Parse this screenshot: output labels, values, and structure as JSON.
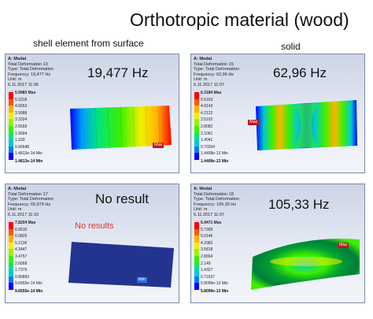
{
  "title": "Orthotropic material (wood)",
  "labels": {
    "left": "shell element from surface",
    "right": "solid"
  },
  "panels": [
    {
      "id": "p1",
      "header": "A: Modal",
      "lines": [
        "Total Deformation 13",
        "Type: Total Deformation",
        "Frequency: 19,477 Hz",
        "Unit: m",
        "6.11.2017 11:06"
      ],
      "freq_label": "19,477 Hz",
      "legend": [
        "5.9983 Max",
        "5.3318",
        "4.6653",
        "3.9988",
        "3.3324",
        "2.6659",
        "1.9994",
        "1.333",
        "0.66648",
        "1.4813e-14 Min"
      ],
      "marker": "Max"
    },
    {
      "id": "p2",
      "header": "A: Modal",
      "lines": [
        "Total Deformation 15",
        "Type: Total Deformation",
        "Frequency: 62,96 Hz",
        "Unit: m",
        "6.11.2017 11:07"
      ],
      "freq_label": "62,96 Hz",
      "legend": [
        "6.3184 Max",
        "5.6163",
        "4.9143",
        "4.2122",
        "3.5102",
        "2.8082",
        "2.1061",
        "1.4041",
        "0.70204",
        "1.4408e-13 Min"
      ],
      "marker": "Max"
    },
    {
      "id": "p3",
      "header": "A: Modal",
      "lines": [
        "Total Deformation 17",
        "Type: Total Deformation",
        "Frequency: 65,979 Hz",
        "Unit: m",
        "6.11.2017 11:10"
      ],
      "freq_label": "No result",
      "note": "No results",
      "legend": [
        "7.8204 Max",
        "6.9515",
        "6.0825",
        "5.2136",
        "4.3447",
        "3.4757",
        "2.6068",
        "1.7379",
        "0.86893",
        "9.6655e-14 Min"
      ],
      "marker": "Min"
    },
    {
      "id": "p4",
      "header": "A: Modal",
      "lines": [
        "Total Deformation 18",
        "Type: Total Deformation",
        "Frequency: 105,33 Hz",
        "Unit: m",
        "6.11.2017 11:07"
      ],
      "freq_label": "105,33 Hz",
      "legend": [
        "6.4471 Max",
        "5.7309",
        "5.0146",
        "4.2982",
        "3.5818",
        "2.8654",
        "2.149",
        "1.4327",
        "0.71637",
        "5.8099e-13 Min"
      ],
      "marker": "Max"
    }
  ],
  "legend_colors": [
    "#ff0000",
    "#ff5a00",
    "#ffb400",
    "#f0f000",
    "#9bf000",
    "#3cf000",
    "#00e678",
    "#00c8d2",
    "#007dff",
    "#0000ff"
  ]
}
